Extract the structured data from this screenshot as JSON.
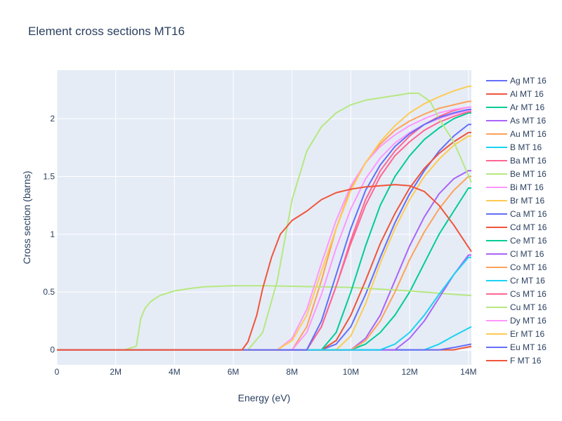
{
  "chart_data": {
    "type": "line",
    "title": "Element cross sections MT16",
    "xlabel": "Energy (eV)",
    "ylabel": "Cross section (barns)",
    "xlim": [
      0,
      14100000
    ],
    "ylim": [
      -0.13,
      2.42
    ],
    "x_ticks": [
      0,
      2000000,
      4000000,
      6000000,
      8000000,
      10000000,
      12000000,
      14000000
    ],
    "x_tick_labels": [
      "0",
      "2M",
      "4M",
      "6M",
      "8M",
      "10M",
      "12M",
      "14M"
    ],
    "y_ticks": [
      0,
      0.5,
      1,
      1.5,
      2
    ],
    "y_tick_labels": [
      "0",
      "0.5",
      "1",
      "1.5",
      "2"
    ],
    "grid": true,
    "legend_position": "right",
    "series": [
      {
        "name": "Ag MT 16",
        "color": "#636efa",
        "x": [
          9000000,
          9500000,
          10000000,
          10500000,
          11000000,
          11500000,
          12000000,
          12500000,
          13000000,
          13500000,
          14000000
        ],
        "y": [
          0,
          0.05,
          0.2,
          0.48,
          0.8,
          1.1,
          1.35,
          1.55,
          1.72,
          1.85,
          1.95
        ]
      },
      {
        "name": "Al MT 16",
        "color": "#ef553b",
        "x": [
          13500000,
          14100000
        ],
        "y": [
          0,
          0.03
        ]
      },
      {
        "name": "Ar MT 16",
        "color": "#00cc96",
        "x": [
          10000000,
          10500000,
          11000000,
          11500000,
          12000000,
          12500000,
          13000000,
          13500000,
          14000000
        ],
        "y": [
          0,
          0.05,
          0.15,
          0.3,
          0.5,
          0.75,
          1.0,
          1.2,
          1.4
        ]
      },
      {
        "name": "As MT 16",
        "color": "#ab63fa",
        "x": [
          10000000,
          10500000,
          11000000,
          11500000,
          12000000,
          12500000,
          13000000,
          13500000,
          14000000
        ],
        "y": [
          0,
          0.1,
          0.3,
          0.6,
          0.9,
          1.15,
          1.35,
          1.48,
          1.55
        ]
      },
      {
        "name": "Au MT 16",
        "color": "#ffa15a",
        "x": [
          8000000,
          8500000,
          9000000,
          9500000,
          10000000,
          10500000,
          11000000,
          11500000,
          12000000,
          12500000,
          13000000,
          13500000,
          14000000
        ],
        "y": [
          0,
          0.2,
          0.6,
          1.05,
          1.4,
          1.62,
          1.78,
          1.9,
          1.98,
          2.04,
          2.09,
          2.12,
          2.15
        ]
      },
      {
        "name": "B MT 16",
        "color": "#19d3f3",
        "x": [
          12500000,
          13000000,
          13500000,
          14100000
        ],
        "y": [
          0,
          0.05,
          0.12,
          0.2
        ]
      },
      {
        "name": "Ba MT 16",
        "color": "#ff6692",
        "x": [
          8500000,
          9000000,
          9500000,
          10000000,
          10500000,
          11000000,
          11500000,
          12000000,
          12500000,
          13000000,
          13500000,
          14000000
        ],
        "y": [
          0,
          0.2,
          0.55,
          0.95,
          1.3,
          1.55,
          1.72,
          1.85,
          1.95,
          2.02,
          2.07,
          2.1
        ]
      },
      {
        "name": "Be MT 16",
        "color": "#b6e880",
        "x": [
          1660000,
          2300000,
          2700000,
          2850000,
          3000000,
          3200000,
          3500000,
          4000000,
          4500000,
          5000000,
          6000000,
          7000000,
          8000000,
          9000000,
          10000000,
          11000000,
          12000000,
          13000000,
          14100000
        ],
        "y": [
          0,
          0,
          0.03,
          0.27,
          0.36,
          0.42,
          0.47,
          0.51,
          0.53,
          0.545,
          0.555,
          0.555,
          0.55,
          0.545,
          0.54,
          0.525,
          0.51,
          0.49,
          0.47
        ]
      },
      {
        "name": "Bi MT 16",
        "color": "#ff97ff",
        "x": [
          7500000,
          8000000,
          8500000,
          9000000,
          9500000,
          10000000,
          10500000,
          11000000,
          11500000,
          12000000,
          12500000,
          13000000,
          13500000,
          14000000
        ],
        "y": [
          0,
          0.1,
          0.35,
          0.75,
          1.12,
          1.42,
          1.62,
          1.76,
          1.86,
          1.94,
          2.0,
          2.05,
          2.08,
          2.1
        ]
      },
      {
        "name": "Br MT 16",
        "color": "#fecb52",
        "x": [
          9500000,
          10000000,
          10500000,
          11000000,
          11500000,
          12000000,
          12500000,
          13000000,
          13500000,
          14000000
        ],
        "y": [
          0,
          0.12,
          0.4,
          0.75,
          1.05,
          1.3,
          1.5,
          1.65,
          1.77,
          1.85
        ]
      },
      {
        "name": "Ca MT 16",
        "color": "#636efa",
        "x": [
          13000000,
          13500000,
          14100000
        ],
        "y": [
          0,
          0.02,
          0.05
        ]
      },
      {
        "name": "Cd MT 16",
        "color": "#ef553b",
        "x": [
          9000000,
          9500000,
          10000000,
          10500000,
          11000000,
          11500000,
          12000000,
          12500000,
          13000000,
          13500000,
          14000000
        ],
        "y": [
          0,
          0.08,
          0.3,
          0.6,
          0.92,
          1.18,
          1.4,
          1.57,
          1.7,
          1.8,
          1.88
        ]
      },
      {
        "name": "Ce MT 16",
        "color": "#00cc96",
        "x": [
          9000000,
          9500000,
          10000000,
          10500000,
          11000000,
          11500000,
          12000000,
          12500000,
          13000000,
          13500000,
          14000000
        ],
        "y": [
          0,
          0.15,
          0.5,
          0.9,
          1.25,
          1.5,
          1.68,
          1.82,
          1.92,
          2.0,
          2.05
        ]
      },
      {
        "name": "Cl MT 16",
        "color": "#ab63fa",
        "x": [
          11500000,
          12000000,
          12500000,
          13000000,
          13500000,
          14000000
        ],
        "y": [
          0,
          0.1,
          0.25,
          0.45,
          0.65,
          0.82
        ]
      },
      {
        "name": "Co MT 16",
        "color": "#ffa15a",
        "x": [
          10000000,
          10500000,
          11000000,
          11500000,
          12000000,
          12500000,
          13000000,
          13500000,
          14000000
        ],
        "y": [
          0,
          0.08,
          0.25,
          0.5,
          0.78,
          1.02,
          1.22,
          1.38,
          1.5
        ]
      },
      {
        "name": "Cr MT 16",
        "color": "#19d3f3",
        "x": [
          11000000,
          11500000,
          12000000,
          12500000,
          13000000,
          13500000,
          14000000
        ],
        "y": [
          0,
          0.05,
          0.15,
          0.3,
          0.48,
          0.65,
          0.8
        ]
      },
      {
        "name": "Cs MT 16",
        "color": "#ff6692",
        "x": [
          8500000,
          9000000,
          9500000,
          10000000,
          10500000,
          11000000,
          11500000,
          12000000,
          12500000,
          13000000,
          13500000,
          14000000
        ],
        "y": [
          0,
          0.2,
          0.55,
          0.92,
          1.25,
          1.5,
          1.68,
          1.8,
          1.9,
          1.97,
          2.02,
          2.06
        ]
      },
      {
        "name": "Cu MT 16",
        "color": "#b6e880",
        "x": [
          6500000,
          7000000,
          7500000,
          8000000,
          8500000,
          9000000,
          9500000,
          10000000,
          10500000,
          11000000,
          11500000,
          12000000,
          12300000,
          12700000,
          13000000,
          13500000,
          14100000
        ],
        "y": [
          0,
          0.15,
          0.6,
          1.3,
          1.72,
          1.93,
          2.05,
          2.12,
          2.16,
          2.18,
          2.2,
          2.22,
          2.22,
          2.15,
          2.0,
          1.8,
          1.45
        ]
      },
      {
        "name": "Dy MT 16",
        "color": "#ff97ff",
        "x": [
          8000000,
          8500000,
          9000000,
          9500000,
          10000000,
          10500000,
          11000000,
          11500000,
          12000000,
          12500000,
          13000000,
          13500000,
          14000000
        ],
        "y": [
          0,
          0.15,
          0.48,
          0.88,
          1.22,
          1.48,
          1.66,
          1.79,
          1.88,
          1.95,
          2.0,
          2.04,
          2.07
        ]
      },
      {
        "name": "Er MT 16",
        "color": "#fecb52",
        "x": [
          7500000,
          8000000,
          8500000,
          9000000,
          9500000,
          10000000,
          10500000,
          11000000,
          11500000,
          12000000,
          12500000,
          13000000,
          13500000,
          14000000
        ],
        "y": [
          0,
          0.08,
          0.3,
          0.68,
          1.05,
          1.38,
          1.62,
          1.8,
          1.94,
          2.05,
          2.13,
          2.19,
          2.24,
          2.28
        ]
      },
      {
        "name": "Eu MT 16",
        "color": "#636efa",
        "x": [
          8500000,
          9000000,
          9500000,
          10000000,
          10500000,
          11000000,
          11500000,
          12000000,
          12500000,
          13000000,
          13500000,
          14000000
        ],
        "y": [
          0,
          0.25,
          0.65,
          1.05,
          1.38,
          1.6,
          1.76,
          1.87,
          1.95,
          2.01,
          2.05,
          2.08
        ]
      },
      {
        "name": "F MT 16",
        "color": "#ef553b",
        "x": [
          6300000,
          6500000,
          6800000,
          7000000,
          7300000,
          7600000,
          8000000,
          8500000,
          9000000,
          9500000,
          10000000,
          10500000,
          11000000,
          11500000,
          12000000,
          12500000,
          13000000,
          13500000,
          14100000
        ],
        "y": [
          0,
          0.07,
          0.3,
          0.53,
          0.8,
          1.0,
          1.12,
          1.2,
          1.3,
          1.36,
          1.39,
          1.41,
          1.42,
          1.43,
          1.42,
          1.37,
          1.25,
          1.08,
          0.85
        ]
      }
    ]
  }
}
